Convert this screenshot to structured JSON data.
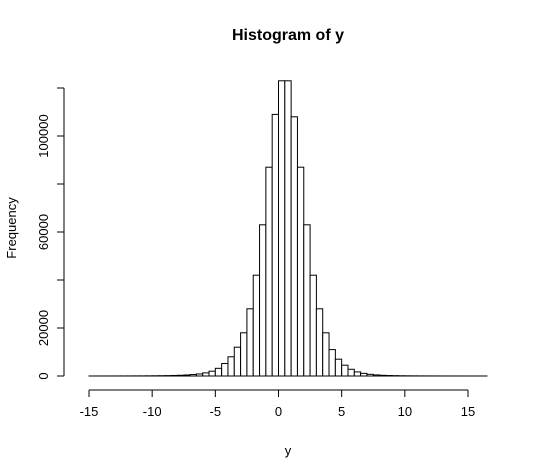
{
  "chart_data": {
    "type": "bar",
    "title": "Histogram of y",
    "xlabel": "y",
    "ylabel": "Frequency",
    "xlim": [
      -15,
      16.5
    ],
    "ylim": [
      0,
      124000
    ],
    "grid": false,
    "x_ticks": [
      -15,
      -10,
      -5,
      0,
      5,
      10,
      15
    ],
    "x_tick_labels": [
      "-15",
      "-10",
      "-5",
      "0",
      "5",
      "10",
      "15"
    ],
    "y_ticks": [
      0,
      20000,
      40000,
      60000,
      80000,
      100000,
      120000
    ],
    "y_tick_labels": [
      "0",
      "20000",
      "",
      "60000",
      "",
      "100000",
      ""
    ],
    "bin_width": 0.5,
    "bins": [
      {
        "x0": -15.0,
        "x1": -14.5,
        "count": 10
      },
      {
        "x0": -14.5,
        "x1": -14.0,
        "count": 12
      },
      {
        "x0": -14.0,
        "x1": -13.5,
        "count": 15
      },
      {
        "x0": -13.5,
        "x1": -13.0,
        "count": 18
      },
      {
        "x0": -13.0,
        "x1": -12.5,
        "count": 22
      },
      {
        "x0": -12.5,
        "x1": -12.0,
        "count": 28
      },
      {
        "x0": -12.0,
        "x1": -11.5,
        "count": 35
      },
      {
        "x0": -11.5,
        "x1": -11.0,
        "count": 45
      },
      {
        "x0": -11.0,
        "x1": -10.5,
        "count": 55
      },
      {
        "x0": -10.5,
        "x1": -10.0,
        "count": 70
      },
      {
        "x0": -10.0,
        "x1": -9.5,
        "count": 90
      },
      {
        "x0": -9.5,
        "x1": -9.0,
        "count": 120
      },
      {
        "x0": -9.0,
        "x1": -8.5,
        "count": 160
      },
      {
        "x0": -8.5,
        "x1": -8.0,
        "count": 220
      },
      {
        "x0": -8.0,
        "x1": -7.5,
        "count": 300
      },
      {
        "x0": -7.5,
        "x1": -7.0,
        "count": 420
      },
      {
        "x0": -7.0,
        "x1": -6.5,
        "count": 600
      },
      {
        "x0": -6.5,
        "x1": -6.0,
        "count": 850
      },
      {
        "x0": -6.0,
        "x1": -5.5,
        "count": 1300
      },
      {
        "x0": -5.5,
        "x1": -5.0,
        "count": 2000
      },
      {
        "x0": -5.0,
        "x1": -4.5,
        "count": 3200
      },
      {
        "x0": -4.5,
        "x1": -4.0,
        "count": 5200
      },
      {
        "x0": -4.0,
        "x1": -3.5,
        "count": 8000
      },
      {
        "x0": -3.5,
        "x1": -3.0,
        "count": 12000
      },
      {
        "x0": -3.0,
        "x1": -2.5,
        "count": 18000
      },
      {
        "x0": -2.5,
        "x1": -2.0,
        "count": 28000
      },
      {
        "x0": -2.0,
        "x1": -1.5,
        "count": 42000
      },
      {
        "x0": -1.5,
        "x1": -1.0,
        "count": 63000
      },
      {
        "x0": -1.0,
        "x1": -0.5,
        "count": 87000
      },
      {
        "x0": -0.5,
        "x1": 0.0,
        "count": 109000
      },
      {
        "x0": 0.0,
        "x1": 0.5,
        "count": 123000
      },
      {
        "x0": 0.5,
        "x1": 1.0,
        "count": 123000
      },
      {
        "x0": 1.0,
        "x1": 1.5,
        "count": 108000
      },
      {
        "x0": 1.5,
        "x1": 2.0,
        "count": 87000
      },
      {
        "x0": 2.0,
        "x1": 2.5,
        "count": 63000
      },
      {
        "x0": 2.5,
        "x1": 3.0,
        "count": 42000
      },
      {
        "x0": 3.0,
        "x1": 3.5,
        "count": 28000
      },
      {
        "x0": 3.5,
        "x1": 4.0,
        "count": 18000
      },
      {
        "x0": 4.0,
        "x1": 4.5,
        "count": 11000
      },
      {
        "x0": 4.5,
        "x1": 5.0,
        "count": 7000
      },
      {
        "x0": 5.0,
        "x1": 5.5,
        "count": 4500
      },
      {
        "x0": 5.5,
        "x1": 6.0,
        "count": 2800
      },
      {
        "x0": 6.0,
        "x1": 6.5,
        "count": 1700
      },
      {
        "x0": 6.5,
        "x1": 7.0,
        "count": 1100
      },
      {
        "x0": 7.0,
        "x1": 7.5,
        "count": 700
      },
      {
        "x0": 7.5,
        "x1": 8.0,
        "count": 450
      },
      {
        "x0": 8.0,
        "x1": 8.5,
        "count": 300
      },
      {
        "x0": 8.5,
        "x1": 9.0,
        "count": 200
      },
      {
        "x0": 9.0,
        "x1": 9.5,
        "count": 140
      },
      {
        "x0": 9.5,
        "x1": 10.0,
        "count": 100
      },
      {
        "x0": 10.0,
        "x1": 10.5,
        "count": 75
      },
      {
        "x0": 10.5,
        "x1": 11.0,
        "count": 55
      },
      {
        "x0": 11.0,
        "x1": 11.5,
        "count": 42
      },
      {
        "x0": 11.5,
        "x1": 12.0,
        "count": 32
      },
      {
        "x0": 12.0,
        "x1": 12.5,
        "count": 25
      },
      {
        "x0": 12.5,
        "x1": 13.0,
        "count": 20
      },
      {
        "x0": 13.0,
        "x1": 13.5,
        "count": 16
      },
      {
        "x0": 13.5,
        "x1": 14.0,
        "count": 13
      },
      {
        "x0": 14.0,
        "x1": 14.5,
        "count": 11
      },
      {
        "x0": 14.5,
        "x1": 15.0,
        "count": 9
      },
      {
        "x0": 15.0,
        "x1": 15.5,
        "count": 8
      },
      {
        "x0": 15.5,
        "x1": 16.0,
        "count": 7
      },
      {
        "x0": 16.0,
        "x1": 16.5,
        "count": 6
      }
    ],
    "colors": {
      "bar_fill": "#ffffff",
      "bar_stroke": "#000000",
      "axis": "#000000",
      "background": "#ffffff"
    }
  }
}
